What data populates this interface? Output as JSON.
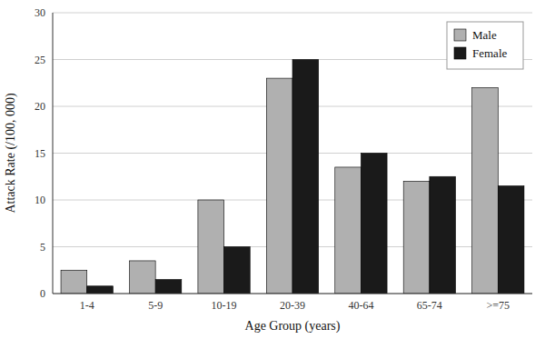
{
  "chart_data": {
    "type": "bar",
    "xlabel": "Age Group (years)",
    "ylabel": "Attack Rate (/100, 000)",
    "categories": [
      "1-4",
      "5-9",
      "10-19",
      "20-39",
      "40-64",
      "65-74",
      ">=75"
    ],
    "series": [
      {
        "name": "Male",
        "color": "#b0b0b0",
        "values": [
          2.5,
          3.5,
          10.0,
          23.0,
          13.5,
          12.0,
          22.0
        ]
      },
      {
        "name": "Female",
        "color": "#1a1a1a",
        "values": [
          0.8,
          1.5,
          5.0,
          25.0,
          15.0,
          12.5,
          11.5
        ]
      }
    ],
    "ylim": [
      0,
      30
    ],
    "yticks": [
      0,
      5,
      10,
      15,
      20,
      25,
      30
    ],
    "grid": true,
    "legend": "upper right"
  }
}
